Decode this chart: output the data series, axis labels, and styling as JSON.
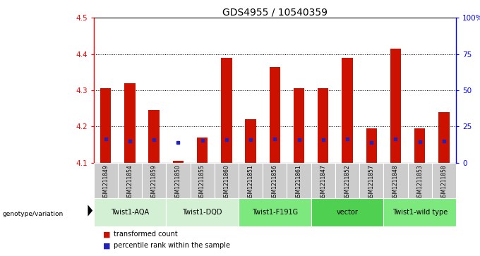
{
  "title": "GDS4955 / 10540359",
  "samples": [
    "GSM1211849",
    "GSM1211854",
    "GSM1211859",
    "GSM1211850",
    "GSM1211855",
    "GSM1211860",
    "GSM1211851",
    "GSM1211856",
    "GSM1211861",
    "GSM1211847",
    "GSM1211852",
    "GSM1211857",
    "GSM1211848",
    "GSM1211853",
    "GSM1211858"
  ],
  "red_values": [
    4.305,
    4.32,
    4.245,
    4.105,
    4.17,
    4.39,
    4.22,
    4.365,
    4.305,
    4.305,
    4.39,
    4.195,
    4.415,
    4.195,
    4.24
  ],
  "blue_values": [
    4.165,
    4.16,
    4.163,
    4.155,
    4.162,
    4.163,
    4.163,
    4.165,
    4.163,
    4.163,
    4.165,
    4.155,
    4.165,
    4.158,
    4.16
  ],
  "groups": [
    {
      "label": "Twist1-AQA",
      "start": 0,
      "end": 3,
      "color": "#d4f0d4"
    },
    {
      "label": "Twist1-DQD",
      "start": 3,
      "end": 6,
      "color": "#d4f0d4"
    },
    {
      "label": "Twist1-F191G",
      "start": 6,
      "end": 9,
      "color": "#7de87d"
    },
    {
      "label": "vector",
      "start": 9,
      "end": 12,
      "color": "#50d050"
    },
    {
      "label": "Twist1-wild type",
      "start": 12,
      "end": 15,
      "color": "#7de87d"
    }
  ],
  "ylim_left": [
    4.1,
    4.5
  ],
  "ylim_right": [
    0,
    100
  ],
  "yticks_left": [
    4.1,
    4.2,
    4.3,
    4.4,
    4.5
  ],
  "yticks_right": [
    0,
    25,
    50,
    75,
    100
  ],
  "bar_color": "#cc1100",
  "blue_color": "#2222bb",
  "bar_bottom": 4.1,
  "sample_bg_color": "#cccccc"
}
